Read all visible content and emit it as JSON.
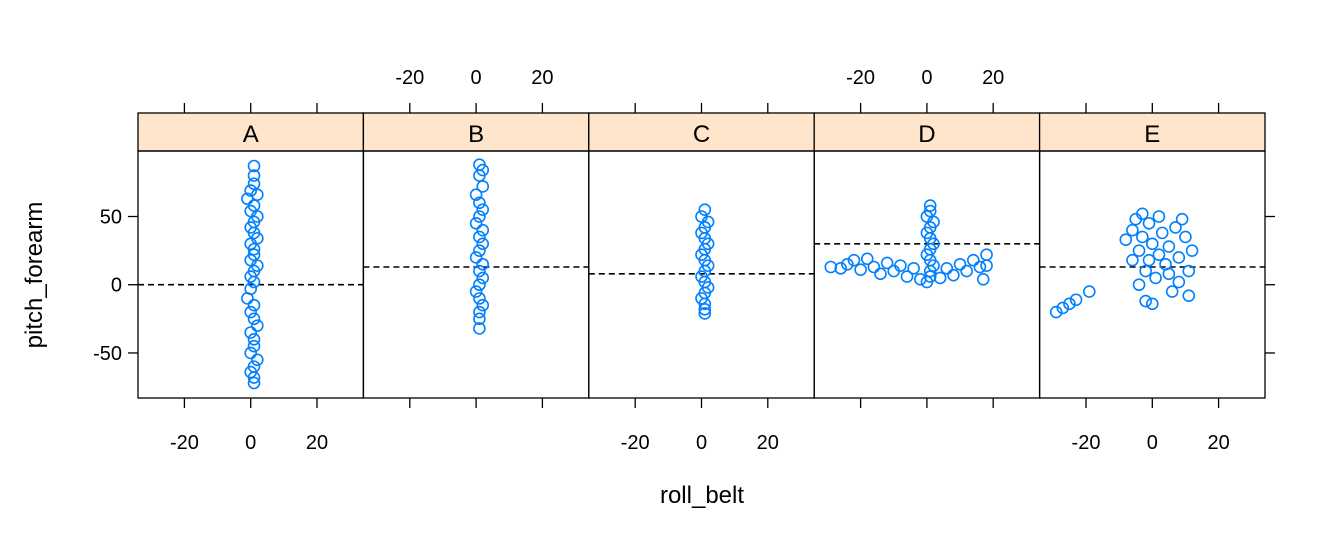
{
  "chart_data": {
    "type": "scatter",
    "xlabel": "roll_belt",
    "ylabel": "pitch_forearm",
    "xlim": [
      -34,
      34
    ],
    "ylim": [
      -83,
      98
    ],
    "x_ticks": [
      -20,
      0,
      20
    ],
    "y_ticks": [
      -50,
      0,
      50
    ],
    "x_ticks_bottom_panels": [
      "A",
      "C",
      "E"
    ],
    "x_ticks_top_panels": [
      "B",
      "D"
    ],
    "point_color": "#0080ff",
    "strip_color": "#ffe5cc",
    "panels": [
      {
        "label": "A",
        "reference_line_y": 0,
        "points": [
          {
            "x": 1,
            "y": 87
          },
          {
            "x": 1,
            "y": 80
          },
          {
            "x": 1,
            "y": 74
          },
          {
            "x": 0,
            "y": 69
          },
          {
            "x": 2,
            "y": 66
          },
          {
            "x": -1,
            "y": 63
          },
          {
            "x": 1,
            "y": 58
          },
          {
            "x": 0,
            "y": 54
          },
          {
            "x": 2,
            "y": 50
          },
          {
            "x": 1,
            "y": 46
          },
          {
            "x": 0,
            "y": 42
          },
          {
            "x": 1,
            "y": 38
          },
          {
            "x": 2,
            "y": 34
          },
          {
            "x": 0,
            "y": 30
          },
          {
            "x": 1,
            "y": 26
          },
          {
            "x": 1,
            "y": 22
          },
          {
            "x": 0,
            "y": 18
          },
          {
            "x": 2,
            "y": 14
          },
          {
            "x": 1,
            "y": 10
          },
          {
            "x": 0,
            "y": 6
          },
          {
            "x": 1,
            "y": 2
          },
          {
            "x": 0,
            "y": -3
          },
          {
            "x": -1,
            "y": -10
          },
          {
            "x": 1,
            "y": -15
          },
          {
            "x": 0,
            "y": -20
          },
          {
            "x": 1,
            "y": -25
          },
          {
            "x": 2,
            "y": -30
          },
          {
            "x": 0,
            "y": -35
          },
          {
            "x": 1,
            "y": -40
          },
          {
            "x": 1,
            "y": -45
          },
          {
            "x": 0,
            "y": -50
          },
          {
            "x": 2,
            "y": -55
          },
          {
            "x": 1,
            "y": -60
          },
          {
            "x": 0,
            "y": -64
          },
          {
            "x": 1,
            "y": -68
          },
          {
            "x": 1,
            "y": -72
          }
        ]
      },
      {
        "label": "B",
        "reference_line_y": 13,
        "points": [
          {
            "x": 1,
            "y": 88
          },
          {
            "x": 2,
            "y": 84
          },
          {
            "x": 1,
            "y": 80
          },
          {
            "x": 2,
            "y": 72
          },
          {
            "x": 0,
            "y": 66
          },
          {
            "x": 1,
            "y": 60
          },
          {
            "x": 2,
            "y": 55
          },
          {
            "x": 1,
            "y": 50
          },
          {
            "x": 0,
            "y": 45
          },
          {
            "x": 2,
            "y": 40
          },
          {
            "x": 1,
            "y": 35
          },
          {
            "x": 2,
            "y": 30
          },
          {
            "x": 1,
            "y": 25
          },
          {
            "x": 0,
            "y": 20
          },
          {
            "x": 2,
            "y": 15
          },
          {
            "x": 1,
            "y": 10
          },
          {
            "x": 2,
            "y": 5
          },
          {
            "x": 1,
            "y": 0
          },
          {
            "x": 0,
            "y": -5
          },
          {
            "x": 1,
            "y": -10
          },
          {
            "x": 2,
            "y": -15
          },
          {
            "x": 1,
            "y": -20
          },
          {
            "x": 1,
            "y": -25
          },
          {
            "x": 1,
            "y": -32
          }
        ]
      },
      {
        "label": "C",
        "reference_line_y": 8,
        "points": [
          {
            "x": 1,
            "y": 55
          },
          {
            "x": 0,
            "y": 50
          },
          {
            "x": 2,
            "y": 46
          },
          {
            "x": 1,
            "y": 42
          },
          {
            "x": 0,
            "y": 38
          },
          {
            "x": 1,
            "y": 34
          },
          {
            "x": 2,
            "y": 30
          },
          {
            "x": 1,
            "y": 26
          },
          {
            "x": 0,
            "y": 22
          },
          {
            "x": 1,
            "y": 18
          },
          {
            "x": 2,
            "y": 14
          },
          {
            "x": 1,
            "y": 10
          },
          {
            "x": 0,
            "y": 6
          },
          {
            "x": 1,
            "y": 2
          },
          {
            "x": 2,
            "y": -2
          },
          {
            "x": 1,
            "y": -6
          },
          {
            "x": 0,
            "y": -10
          },
          {
            "x": 1,
            "y": -14
          },
          {
            "x": 1,
            "y": -18
          },
          {
            "x": 1,
            "y": -21
          }
        ]
      },
      {
        "label": "D",
        "reference_line_y": 30,
        "points": [
          {
            "x": -29,
            "y": 13
          },
          {
            "x": -26,
            "y": 12
          },
          {
            "x": -24,
            "y": 15
          },
          {
            "x": -22,
            "y": 18
          },
          {
            "x": -20,
            "y": 11
          },
          {
            "x": -18,
            "y": 19
          },
          {
            "x": -16,
            "y": 13
          },
          {
            "x": -14,
            "y": 8
          },
          {
            "x": -12,
            "y": 16
          },
          {
            "x": -10,
            "y": 10
          },
          {
            "x": -8,
            "y": 14
          },
          {
            "x": -6,
            "y": 6
          },
          {
            "x": -4,
            "y": 12
          },
          {
            "x": -2,
            "y": 4
          },
          {
            "x": 1,
            "y": 58
          },
          {
            "x": 1,
            "y": 54
          },
          {
            "x": 0,
            "y": 50
          },
          {
            "x": 2,
            "y": 46
          },
          {
            "x": 1,
            "y": 42
          },
          {
            "x": 0,
            "y": 38
          },
          {
            "x": 1,
            "y": 34
          },
          {
            "x": 2,
            "y": 30
          },
          {
            "x": 1,
            "y": 26
          },
          {
            "x": 0,
            "y": 22
          },
          {
            "x": 1,
            "y": 18
          },
          {
            "x": 2,
            "y": 14
          },
          {
            "x": 1,
            "y": 10
          },
          {
            "x": 1,
            "y": 6
          },
          {
            "x": 0,
            "y": 2
          },
          {
            "x": 4,
            "y": 5
          },
          {
            "x": 6,
            "y": 12
          },
          {
            "x": 8,
            "y": 7
          },
          {
            "x": 10,
            "y": 15
          },
          {
            "x": 12,
            "y": 10
          },
          {
            "x": 14,
            "y": 18
          },
          {
            "x": 16,
            "y": 13
          },
          {
            "x": 18,
            "y": 22
          },
          {
            "x": 17,
            "y": 4
          },
          {
            "x": 18,
            "y": 14
          }
        ]
      },
      {
        "label": "E",
        "reference_line_y": 13,
        "points": [
          {
            "x": -29,
            "y": -20
          },
          {
            "x": -27,
            "y": -17
          },
          {
            "x": -25,
            "y": -14
          },
          {
            "x": -23,
            "y": -11
          },
          {
            "x": -19,
            "y": -5
          },
          {
            "x": -8,
            "y": 33
          },
          {
            "x": -6,
            "y": 40
          },
          {
            "x": -5,
            "y": 48
          },
          {
            "x": -4,
            "y": 25
          },
          {
            "x": -3,
            "y": 52
          },
          {
            "x": -2,
            "y": 10
          },
          {
            "x": -1,
            "y": 45
          },
          {
            "x": 0,
            "y": 30
          },
          {
            "x": 1,
            "y": 5
          },
          {
            "x": 2,
            "y": 50
          },
          {
            "x": 3,
            "y": 38
          },
          {
            "x": 4,
            "y": 15
          },
          {
            "x": 5,
            "y": 28
          },
          {
            "x": 6,
            "y": -5
          },
          {
            "x": 7,
            "y": 42
          },
          {
            "x": 8,
            "y": 20
          },
          {
            "x": 9,
            "y": 48
          },
          {
            "x": 10,
            "y": 35
          },
          {
            "x": 11,
            "y": 10
          },
          {
            "x": 12,
            "y": 25
          },
          {
            "x": 11,
            "y": -8
          },
          {
            "x": -2,
            "y": -12
          },
          {
            "x": 0,
            "y": -14
          },
          {
            "x": -6,
            "y": 18
          },
          {
            "x": -4,
            "y": 0
          },
          {
            "x": 2,
            "y": 22
          },
          {
            "x": -3,
            "y": 35
          },
          {
            "x": 5,
            "y": 8
          },
          {
            "x": 8,
            "y": 2
          },
          {
            "x": -1,
            "y": 18
          }
        ]
      }
    ]
  }
}
